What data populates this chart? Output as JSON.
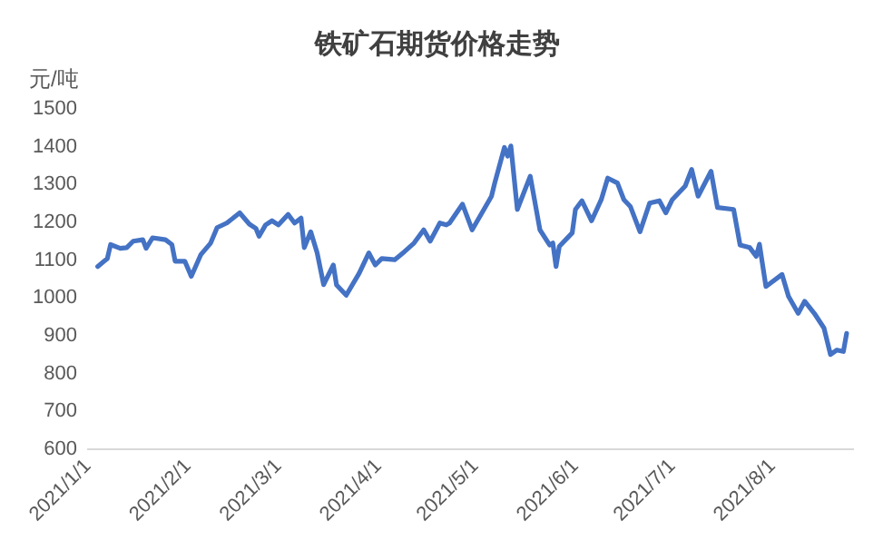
{
  "chart_data": {
    "type": "line",
    "title": "铁矿石期货价格走势",
    "ylabel": "元/吨",
    "x": [
      "2021-01-04",
      "2021-01-06",
      "2021-01-07",
      "2021-01-08",
      "2021-01-11",
      "2021-01-13",
      "2021-01-15",
      "2021-01-18",
      "2021-01-19",
      "2021-01-21",
      "2021-01-25",
      "2021-01-27",
      "2021-01-28",
      "2021-01-31",
      "2021-02-02",
      "2021-02-05",
      "2021-02-08",
      "2021-02-10",
      "2021-02-13",
      "2021-02-17",
      "2021-02-20",
      "2021-02-22",
      "2021-02-23",
      "2021-02-25",
      "2021-02-27",
      "2021-03-01",
      "2021-03-04",
      "2021-03-06",
      "2021-03-08",
      "2021-03-09",
      "2021-03-11",
      "2021-03-13",
      "2021-03-15",
      "2021-03-18",
      "2021-03-19",
      "2021-03-22",
      "2021-03-26",
      "2021-03-29",
      "2021-03-31",
      "2021-04-02",
      "2021-04-06",
      "2021-04-09",
      "2021-04-12",
      "2021-04-15",
      "2021-04-17",
      "2021-04-20",
      "2021-04-22",
      "2021-04-23",
      "2021-04-27",
      "2021-04-30",
      "2021-05-06",
      "2021-05-07",
      "2021-05-10",
      "2021-05-11",
      "2021-05-12",
      "2021-05-14",
      "2021-05-18",
      "2021-05-21",
      "2021-05-24",
      "2021-05-25",
      "2021-05-26",
      "2021-05-27",
      "2021-05-31",
      "2021-06-01",
      "2021-06-03",
      "2021-06-06",
      "2021-06-09",
      "2021-06-11",
      "2021-06-14",
      "2021-06-16",
      "2021-06-18",
      "2021-06-21",
      "2021-06-24",
      "2021-06-27",
      "2021-06-29",
      "2021-07-01",
      "2021-07-05",
      "2021-07-07",
      "2021-07-09",
      "2021-07-13",
      "2021-07-15",
      "2021-07-20",
      "2021-07-22",
      "2021-07-25",
      "2021-07-27",
      "2021-07-28",
      "2021-07-30",
      "2021-08-04",
      "2021-08-06",
      "2021-08-09",
      "2021-08-11",
      "2021-08-14",
      "2021-08-17",
      "2021-08-19",
      "2021-08-21",
      "2021-08-23",
      "2021-08-24"
    ],
    "series": [
      {
        "color": "#4472c4",
        "values": [
          1083,
          1097,
          1104,
          1141,
          1131,
          1133,
          1150,
          1154,
          1131,
          1159,
          1154,
          1141,
          1097,
          1097,
          1057,
          1115,
          1145,
          1186,
          1198,
          1225,
          1195,
          1184,
          1163,
          1193,
          1204,
          1193,
          1221,
          1198,
          1211,
          1133,
          1175,
          1119,
          1035,
          1087,
          1034,
          1007,
          1065,
          1119,
          1087,
          1104,
          1101,
          1122,
          1145,
          1180,
          1150,
          1198,
          1193,
          1198,
          1248,
          1180,
          1269,
          1304,
          1398,
          1375,
          1402,
          1234,
          1322,
          1180,
          1140,
          1145,
          1083,
          1136,
          1172,
          1234,
          1257,
          1204,
          1260,
          1317,
          1304,
          1260,
          1242,
          1175,
          1251,
          1257,
          1225,
          1260,
          1296,
          1340,
          1269,
          1335,
          1239,
          1234,
          1140,
          1133,
          1110,
          1142,
          1030,
          1062,
          1004,
          959,
          991,
          959,
          920,
          850,
          862,
          858,
          906
        ]
      }
    ],
    "xlim": [
      "2021-01-01",
      "2021-08-26"
    ],
    "xticks": [
      {
        "value": "2021-01-01",
        "label": "2021/1/1"
      },
      {
        "value": "2021-02-01",
        "label": "2021/2/1"
      },
      {
        "value": "2021-03-01",
        "label": "2021/3/1"
      },
      {
        "value": "2021-04-01",
        "label": "2021/4/1"
      },
      {
        "value": "2021-05-01",
        "label": "2021/5/1"
      },
      {
        "value": "2021-06-01",
        "label": "2021/6/1"
      },
      {
        "value": "2021-07-01",
        "label": "2021/7/1"
      },
      {
        "value": "2021-08-01",
        "label": "2021/8/1"
      }
    ],
    "ylim": [
      600,
      1500
    ],
    "yticks": [
      600,
      700,
      800,
      900,
      1000,
      1100,
      1200,
      1300,
      1400,
      1500
    ],
    "grid": false,
    "legend": false,
    "marker": "none",
    "line_style": "solid"
  }
}
